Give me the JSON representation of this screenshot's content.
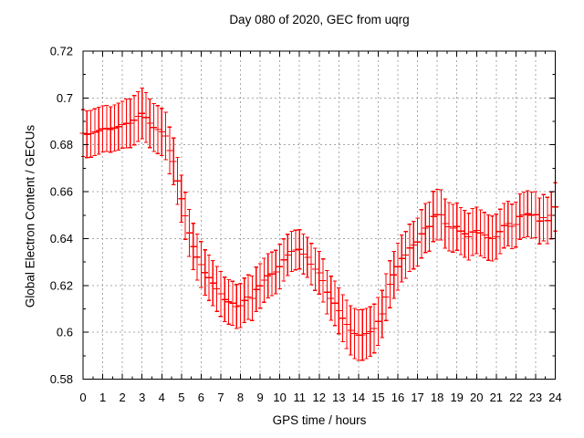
{
  "page": {
    "background": "#ffffff"
  },
  "colors": {
    "series_red": "#ff0000",
    "grid": "#a8a8a8",
    "axis": "#000000",
    "text": "#000000"
  },
  "chart_data": {
    "type": "scatter",
    "subtype": "yerrorbars",
    "title": "Day 080 of 2020, GEC from uqrg",
    "xlabel": "GPS time / hours",
    "ylabel": "Global Electron Content / GECUs",
    "xlim": [
      0,
      24
    ],
    "ylim": [
      0.58,
      0.72
    ],
    "xticks": [
      0,
      1,
      2,
      3,
      4,
      5,
      6,
      7,
      8,
      9,
      10,
      11,
      12,
      13,
      14,
      15,
      16,
      17,
      18,
      19,
      20,
      21,
      22,
      23,
      24
    ],
    "xtick_labels": [
      "0",
      "1",
      "2",
      "3",
      "4",
      "5",
      "6",
      "7",
      "8",
      "9",
      "10",
      "11",
      "12",
      "13",
      "14",
      "15",
      "16",
      "17",
      "18",
      "19",
      "20",
      "21",
      "22",
      "23",
      "24"
    ],
    "x_minor_step": 0.5,
    "yticks": [
      0.58,
      0.6,
      0.62,
      0.64,
      0.66,
      0.68,
      0.7,
      0.72
    ],
    "ytick_labels": [
      "0.58",
      "0.6",
      "0.62",
      "0.64",
      "0.66",
      "0.68",
      "0.7",
      "0.72"
    ],
    "y_minor_step": 0.01,
    "grid": true,
    "legend_position": "none",
    "series": [
      {
        "name": "GEC",
        "color": "#ff0000",
        "x": [
          0,
          0.2,
          0.4,
          0.6,
          0.8,
          1,
          1.2,
          1.4,
          1.6,
          1.8,
          2,
          2.2,
          2.4,
          2.6,
          2.8,
          3,
          3.2,
          3.4,
          3.6,
          3.8,
          4,
          4.2,
          4.4,
          4.6,
          4.8,
          5,
          5.2,
          5.4,
          5.6,
          5.8,
          6,
          6.2,
          6.4,
          6.6,
          6.8,
          7,
          7.2,
          7.4,
          7.6,
          7.8,
          8,
          8.2,
          8.4,
          8.6,
          8.8,
          9,
          9.2,
          9.4,
          9.6,
          9.8,
          10,
          10.2,
          10.4,
          10.6,
          10.8,
          11,
          11.2,
          11.4,
          11.6,
          11.8,
          12,
          12.2,
          12.4,
          12.6,
          12.8,
          13,
          13.2,
          13.4,
          13.6,
          13.8,
          14,
          14.2,
          14.4,
          14.6,
          14.8,
          15,
          15.2,
          15.4,
          15.6,
          15.8,
          16,
          16.2,
          16.4,
          16.6,
          16.8,
          17,
          17.2,
          17.4,
          17.6,
          17.8,
          18,
          18.2,
          18.4,
          18.6,
          18.8,
          19,
          19.2,
          19.4,
          19.6,
          19.8,
          20,
          20.2,
          20.4,
          20.6,
          20.8,
          21,
          21.2,
          21.4,
          21.6,
          21.8,
          22,
          22.2,
          22.4,
          22.6,
          22.8,
          23,
          23.2,
          23.4,
          23.6,
          23.8,
          24
        ],
        "y": [
          0.685,
          0.6845,
          0.6847,
          0.6854,
          0.686,
          0.6868,
          0.687,
          0.6866,
          0.6872,
          0.6878,
          0.6886,
          0.6891,
          0.6892,
          0.6905,
          0.6921,
          0.6934,
          0.6917,
          0.6892,
          0.6874,
          0.6865,
          0.6855,
          0.6838,
          0.6776,
          0.6729,
          0.6646,
          0.657,
          0.6497,
          0.6424,
          0.6366,
          0.6321,
          0.6289,
          0.6255,
          0.6233,
          0.621,
          0.6185,
          0.6164,
          0.614,
          0.613,
          0.6124,
          0.611,
          0.6114,
          0.6136,
          0.615,
          0.6145,
          0.6183,
          0.6198,
          0.6222,
          0.6241,
          0.6249,
          0.6257,
          0.628,
          0.6309,
          0.633,
          0.6345,
          0.6351,
          0.6354,
          0.6334,
          0.632,
          0.6291,
          0.6269,
          0.6254,
          0.6221,
          0.6171,
          0.6145,
          0.6124,
          0.6092,
          0.606,
          0.6034,
          0.6008,
          0.5995,
          0.5988,
          0.5989,
          0.5995,
          0.6003,
          0.6016,
          0.6046,
          0.6078,
          0.615,
          0.6205,
          0.6245,
          0.628,
          0.6315,
          0.633,
          0.636,
          0.6372,
          0.6385,
          0.642,
          0.6445,
          0.6451,
          0.6494,
          0.6502,
          0.6501,
          0.6464,
          0.645,
          0.6444,
          0.6451,
          0.6432,
          0.642,
          0.6408,
          0.6428,
          0.6435,
          0.6424,
          0.6415,
          0.6404,
          0.64,
          0.6408,
          0.643,
          0.6455,
          0.6464,
          0.6452,
          0.646,
          0.6494,
          0.6501,
          0.6506,
          0.65,
          0.6502,
          0.6475,
          0.6489,
          0.6477,
          0.6499,
          0.6535
        ],
        "yerr": [
          0.01,
          0.01,
          0.01,
          0.01,
          0.01,
          0.0098,
          0.0098,
          0.0097,
          0.0098,
          0.01,
          0.01,
          0.0104,
          0.0104,
          0.0105,
          0.0106,
          0.0108,
          0.0106,
          0.0104,
          0.0102,
          0.0102,
          0.0101,
          0.0101,
          0.01,
          0.01,
          0.01,
          0.01,
          0.01,
          0.01,
          0.0099,
          0.0098,
          0.0098,
          0.0097,
          0.0097,
          0.0096,
          0.0096,
          0.0096,
          0.0095,
          0.0095,
          0.0094,
          0.0094,
          0.0094,
          0.0095,
          0.0095,
          0.0095,
          0.0095,
          0.0095,
          0.0094,
          0.0094,
          0.0093,
          0.0093,
          0.0095,
          0.009,
          0.0088,
          0.0086,
          0.0085,
          0.0084,
          0.0085,
          0.0086,
          0.0088,
          0.009,
          0.0091,
          0.0092,
          0.0093,
          0.0094,
          0.0095,
          0.0098,
          0.01,
          0.0103,
          0.0105,
          0.0107,
          0.0108,
          0.0108,
          0.0107,
          0.0106,
          0.0104,
          0.0102,
          0.0101,
          0.01,
          0.01,
          0.01,
          0.01,
          0.01,
          0.01,
          0.0101,
          0.0102,
          0.0102,
          0.0103,
          0.0105,
          0.0105,
          0.0107,
          0.0108,
          0.0107,
          0.0105,
          0.0103,
          0.0102,
          0.0101,
          0.01,
          0.01,
          0.01,
          0.01,
          0.0099,
          0.0098,
          0.0097,
          0.0097,
          0.0096,
          0.0096,
          0.0095,
          0.0095,
          0.0095,
          0.0095,
          0.0096,
          0.0097,
          0.0097,
          0.0098,
          0.0098,
          0.0098,
          0.0098,
          0.0099,
          0.0099,
          0.01,
          0.0103
        ]
      }
    ]
  }
}
